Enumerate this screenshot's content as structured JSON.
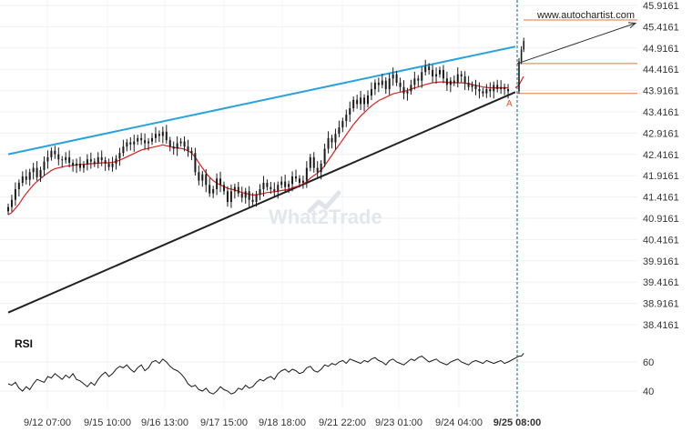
{
  "chart_data": [
    {
      "type": "candlestick",
      "y_axis_side": "right",
      "ylim": [
        38.15,
        46.0
      ],
      "y_ticks": [
        "45.9161",
        "45.4161",
        "44.9161",
        "44.4161",
        "43.9161",
        "43.4161",
        "42.9161",
        "42.4161",
        "41.9161",
        "41.4161",
        "40.9161",
        "40.4161",
        "39.9161",
        "39.4161",
        "38.9161",
        "38.4161"
      ],
      "x_ticks": [
        "9/12 07:00",
        "9/15 10:00",
        "9/16 13:00",
        "9/17 15:00",
        "9/18 18:00",
        "9/21 22:00",
        "9/23 01:00",
        "9/24 04:00",
        "9/25 08:00"
      ],
      "highlighted_x_tick": "9/25 08:00",
      "watermark": "What2Trade",
      "site_label": "www.autochartist.com",
      "point_label": "A",
      "closes": [
        41.18,
        41.35,
        41.6,
        41.75,
        41.9,
        41.82,
        42.0,
        42.1,
        41.88,
        42.05,
        42.25,
        42.35,
        42.5,
        42.42,
        42.3,
        42.28,
        42.35,
        42.22,
        42.15,
        42.2,
        42.1,
        42.18,
        42.3,
        42.25,
        42.2,
        42.35,
        42.28,
        42.2,
        42.12,
        42.2,
        42.32,
        42.45,
        42.6,
        42.7,
        42.65,
        42.72,
        42.8,
        42.75,
        42.68,
        42.72,
        42.8,
        42.9,
        42.85,
        42.95,
        42.75,
        42.6,
        42.55,
        42.68,
        42.72,
        42.6,
        42.5,
        42.45,
        42.0,
        41.8,
        41.95,
        41.7,
        41.5,
        41.6,
        41.85,
        41.7,
        41.55,
        41.3,
        41.55,
        41.65,
        41.5,
        41.4,
        41.55,
        41.35,
        41.3,
        41.48,
        41.6,
        41.75,
        41.65,
        41.6,
        41.55,
        41.7,
        41.78,
        41.65,
        41.72,
        41.9,
        41.85,
        41.75,
        41.8,
        42.1,
        42.35,
        42.1,
        42.0,
        42.2,
        42.55,
        42.8,
        42.7,
        42.9,
        43.05,
        43.2,
        43.35,
        43.5,
        43.7,
        43.6,
        43.75,
        43.6,
        43.8,
        43.95,
        44.1,
        44.05,
        44.15,
        43.95,
        44.2,
        44.3,
        44.1,
        44.0,
        43.85,
        43.9,
        44.05,
        44.2,
        44.15,
        44.35,
        44.48,
        44.4,
        44.25,
        44.3,
        44.4,
        44.2,
        44.05,
        44.15,
        44.1,
        44.3,
        44.25,
        44.1,
        44.0,
        44.05,
        43.95,
        43.9,
        43.85,
        43.95,
        43.9,
        44.05,
        43.95,
        44.0,
        43.95,
        43.9
      ],
      "breakout_closes": [
        44.6,
        44.88,
        45.08
      ],
      "moving_average": [
        41.0,
        41.05,
        41.15,
        41.25,
        41.38,
        41.5,
        41.6,
        41.7,
        41.78,
        41.85,
        41.92,
        41.98,
        42.04,
        42.08,
        42.1,
        42.12,
        42.14,
        42.15,
        42.16,
        42.17,
        42.18,
        42.18,
        42.19,
        42.2,
        42.2,
        42.21,
        42.22,
        42.22,
        42.22,
        42.23,
        42.25,
        42.28,
        42.32,
        42.36,
        42.4,
        42.44,
        42.48,
        42.52,
        42.54,
        42.56,
        42.58,
        42.6,
        42.62,
        42.64,
        42.62,
        42.6,
        42.58,
        42.57,
        42.56,
        42.54,
        42.5,
        42.45,
        42.35,
        42.22,
        42.1,
        41.98,
        41.88,
        41.8,
        41.74,
        41.7,
        41.66,
        41.62,
        41.6,
        41.58,
        41.55,
        41.52,
        41.5,
        41.48,
        41.46,
        41.47,
        41.48,
        41.5,
        41.52,
        41.53,
        41.54,
        41.55,
        41.57,
        41.58,
        41.6,
        41.63,
        41.66,
        41.68,
        41.72,
        41.78,
        41.86,
        41.92,
        41.98,
        42.05,
        42.15,
        42.28,
        42.4,
        42.52,
        42.64,
        42.76,
        42.88,
        43.0,
        43.12,
        43.22,
        43.32,
        43.4,
        43.48,
        43.56,
        43.62,
        43.68,
        43.72,
        43.76,
        43.8,
        43.84,
        43.86,
        43.88,
        43.9,
        43.92,
        43.95,
        43.98,
        44.0,
        44.03,
        44.06,
        44.08,
        44.1,
        44.11,
        44.12,
        44.12,
        44.11,
        44.1,
        44.1,
        44.1,
        44.1,
        44.09,
        44.08,
        44.06,
        44.04,
        44.02,
        44.0,
        43.99,
        43.98,
        43.98,
        43.98,
        43.98,
        43.98,
        43.98
      ],
      "ma_breakout": [
        44.05,
        44.15,
        44.25
      ],
      "upper_trendline": [
        [
          0,
          42.42
        ],
        [
          141,
          44.95
        ]
      ],
      "lower_trendline": [
        [
          0,
          38.7
        ],
        [
          141,
          43.88
        ]
      ],
      "horizontal_levels": [
        44.55,
        43.85
      ],
      "projection": [
        [
          141,
          44.55
        ],
        [
          156,
          45.5
        ]
      ],
      "marker_index": 141
    },
    {
      "type": "line",
      "title": "RSI",
      "y_ticks": [
        "60",
        "40"
      ],
      "ylim": [
        35,
        68
      ],
      "values": [
        45,
        44,
        46,
        42,
        40,
        43,
        41,
        45,
        48,
        47,
        46,
        50,
        49,
        52,
        50,
        48,
        51,
        49,
        52,
        48,
        47,
        45,
        43,
        46,
        44,
        48,
        51,
        53,
        50,
        52,
        55,
        57,
        56,
        58,
        55,
        53,
        56,
        58,
        54,
        56,
        60,
        61,
        59,
        62,
        60,
        57,
        55,
        54,
        52,
        49,
        45,
        43,
        44,
        41,
        40,
        42,
        39,
        38,
        40,
        43,
        41,
        40,
        38,
        39,
        42,
        41,
        44,
        42,
        43,
        46,
        48,
        47,
        49,
        50,
        48,
        52,
        54,
        55,
        53,
        55,
        54,
        52,
        53,
        56,
        57,
        54,
        53,
        55,
        58,
        57,
        59,
        58,
        60,
        61,
        59,
        62,
        61,
        60,
        59,
        61,
        60,
        62,
        63,
        61,
        60,
        58,
        61,
        62,
        60,
        59,
        58,
        60,
        62,
        61,
        63,
        64,
        62,
        60,
        61,
        62,
        60,
        59,
        58,
        60,
        61,
        62,
        60,
        59,
        58,
        60,
        61,
        60,
        59,
        61,
        60,
        59,
        60,
        61,
        59,
        60
      ],
      "breakout_values": [
        64,
        64,
        66
      ]
    }
  ]
}
